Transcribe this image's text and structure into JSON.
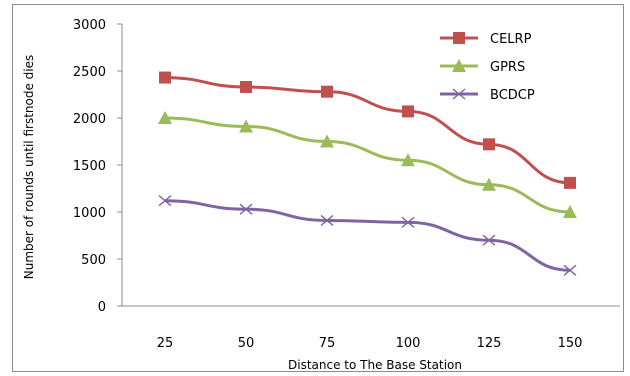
{
  "chart_data": {
    "type": "line",
    "title": "",
    "xlabel": "Distance to The Base Station",
    "ylabel": "Number of rounds until firstnode dies",
    "x": [
      25,
      50,
      75,
      100,
      125,
      150
    ],
    "ylim": [
      0,
      3000
    ],
    "yticks": [
      0,
      500,
      1000,
      1500,
      2000,
      2500,
      3000
    ],
    "grid": false,
    "legend_position": "top-right",
    "series": [
      {
        "name": "CELRP",
        "values": [
          2430,
          2330,
          2280,
          2070,
          1720,
          1310
        ],
        "color": "#c0504d",
        "marker": "square"
      },
      {
        "name": "GPRS",
        "values": [
          2000,
          1910,
          1750,
          1550,
          1290,
          1000
        ],
        "color": "#9bbb59",
        "marker": "triangle"
      },
      {
        "name": "BCDCP",
        "values": [
          1120,
          1030,
          910,
          890,
          700,
          380
        ],
        "color": "#8064a2",
        "marker": "x"
      }
    ]
  }
}
